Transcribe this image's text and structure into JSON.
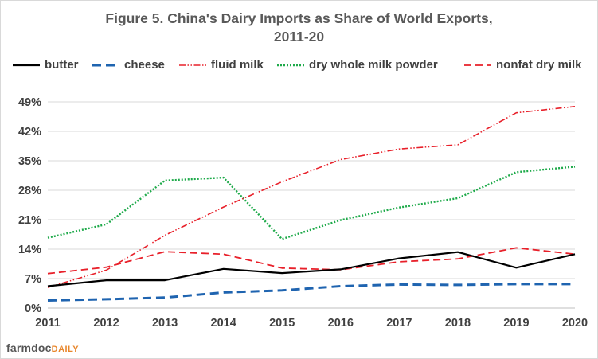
{
  "title": "Figure 5.  China's Dairy Imports as Share of World Exports,",
  "subtitle": "2011-20",
  "brand": {
    "part1": "farmdoc",
    "part2": "DAILY"
  },
  "chart_data": {
    "type": "line",
    "title": "Figure 5.  China's Dairy Imports as Share of World Exports, 2011-20",
    "xlabel": "",
    "ylabel": "",
    "x": [
      2011,
      2012,
      2013,
      2014,
      2015,
      2016,
      2017,
      2018,
      2019,
      2020
    ],
    "ylim": [
      0,
      49
    ],
    "yticks": [
      "0%",
      "7%",
      "14%",
      "21%",
      "28%",
      "35%",
      "42%",
      "49%"
    ],
    "ytick_values": [
      0,
      7,
      14,
      21,
      28,
      35,
      42,
      49
    ],
    "grid": "horizontal",
    "legend_position": "top",
    "series": [
      {
        "name": "butter",
        "color": "#000000",
        "dash": "solid",
        "values": [
          5.2,
          6.6,
          6.6,
          9.3,
          8.3,
          9.2,
          11.8,
          13.3,
          9.6,
          12.8
        ]
      },
      {
        "name": "cheese",
        "color": "#1f64b0",
        "dash": "long-dash",
        "values": [
          1.8,
          2.1,
          2.5,
          3.7,
          4.2,
          5.2,
          5.6,
          5.5,
          5.7,
          5.7
        ]
      },
      {
        "name": "fluid milk",
        "color": "#e8202a",
        "dash": "dash-dot-dot",
        "values": [
          4.9,
          9.0,
          17.3,
          24.0,
          30.0,
          35.3,
          37.8,
          38.8,
          46.4,
          47.9
        ]
      },
      {
        "name": "dry whole milk powder",
        "color": "#1eaa4a",
        "dash": "dotted",
        "values": [
          16.7,
          19.9,
          30.3,
          31.0,
          16.4,
          20.9,
          23.9,
          26.1,
          32.3,
          33.6
        ]
      },
      {
        "name": "nonfat dry milk",
        "color": "#e8202a",
        "dash": "medium-dash",
        "values": [
          8.2,
          9.7,
          13.4,
          12.8,
          9.5,
          9.1,
          11.0,
          11.7,
          14.3,
          12.8
        ]
      }
    ]
  }
}
